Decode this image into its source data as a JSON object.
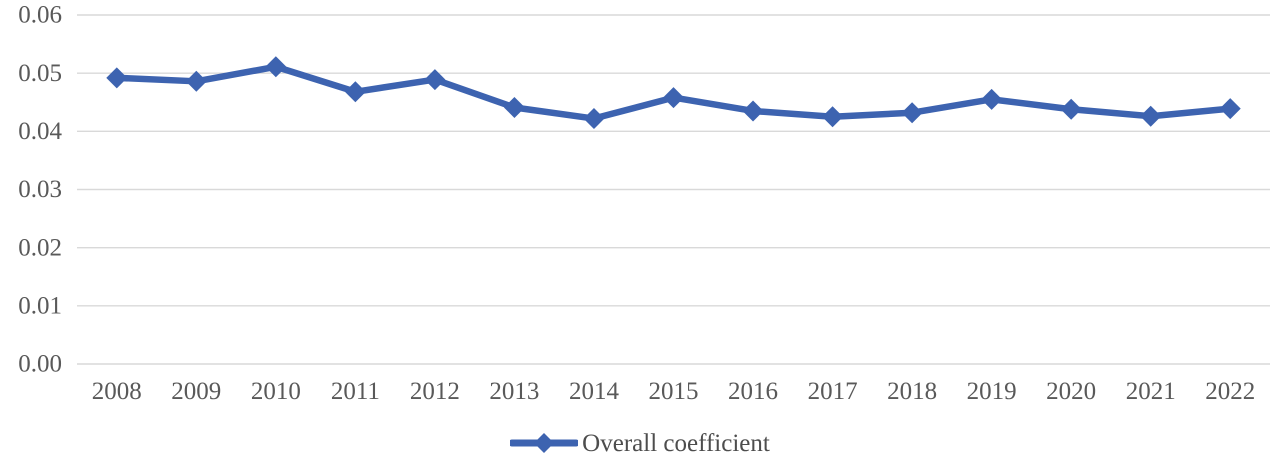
{
  "chart_data": {
    "type": "line",
    "title": "",
    "xlabel": "",
    "ylabel": "",
    "categories": [
      "2008",
      "2009",
      "2010",
      "2011",
      "2012",
      "2013",
      "2014",
      "2015",
      "2016",
      "2017",
      "2018",
      "2019",
      "2020",
      "2021",
      "2022"
    ],
    "series": [
      {
        "name": "Overall coefficient",
        "values": [
          0.0492,
          0.0486,
          0.0511,
          0.0468,
          0.0489,
          0.0441,
          0.0422,
          0.0458,
          0.0435,
          0.0425,
          0.0432,
          0.0455,
          0.0438,
          0.0426,
          0.0439
        ]
      }
    ],
    "ylim": [
      0,
      0.06
    ],
    "ytick_step": 0.01,
    "ytick_decimals": 2,
    "ytick_labels": [
      "0.00",
      "0.01",
      "0.02",
      "0.03",
      "0.04",
      "0.05",
      "0.06"
    ],
    "grid": "horizontal",
    "legend_position": "bottom-center",
    "marker_shape": "diamond",
    "colors": {
      "series_line": "#3D63B0",
      "marker_fill": "#3D63B0",
      "gridline": "#D9D9D9",
      "axis_line": "#D9D9D9",
      "tick_label": "#595959",
      "legend_text": "#4D4D4D",
      "background": "#FFFFFF"
    }
  }
}
